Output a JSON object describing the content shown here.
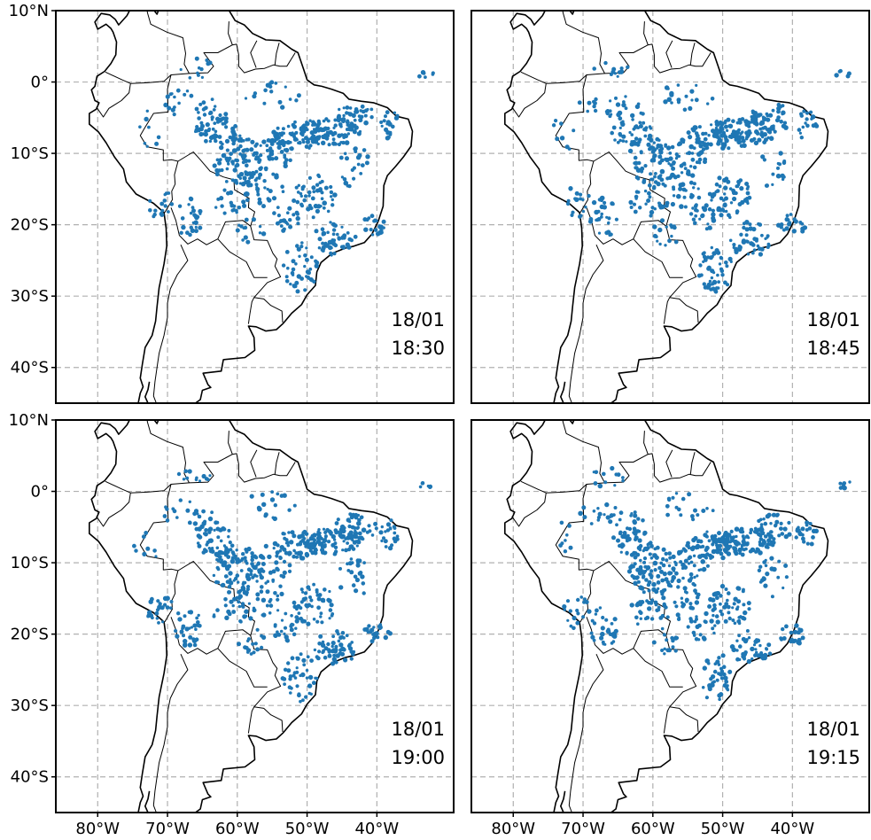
{
  "figure": {
    "extent": {
      "lon_min": -86,
      "lon_max": -29,
      "lat_min": -45,
      "lat_max": 10
    },
    "x_ticks": [
      {
        "value": -80,
        "label": "80°W"
      },
      {
        "value": -70,
        "label": "70°W"
      },
      {
        "value": -60,
        "label": "60°W"
      },
      {
        "value": -50,
        "label": "50°W"
      },
      {
        "value": -40,
        "label": "40°W"
      }
    ],
    "y_ticks": [
      {
        "value": 10,
        "label": "10°N"
      },
      {
        "value": 0,
        "label": "0°"
      },
      {
        "value": -10,
        "label": "10°S"
      },
      {
        "value": -20,
        "label": "20°S"
      },
      {
        "value": -30,
        "label": "30°S"
      },
      {
        "value": -40,
        "label": "40°S"
      }
    ],
    "grid": true,
    "point_color": "#1f77b4",
    "panels": [
      {
        "date": "18/01",
        "time": "18:30"
      },
      {
        "date": "18/01",
        "time": "18:45"
      },
      {
        "date": "18/01",
        "time": "19:00"
      },
      {
        "date": "18/01",
        "time": "19:15"
      }
    ]
  }
}
